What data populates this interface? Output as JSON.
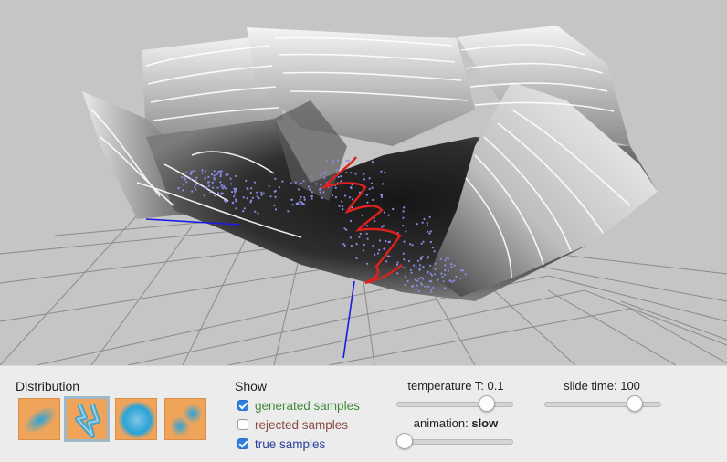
{
  "panel": {
    "distribution_title": "Distribution",
    "show_title": "Show",
    "show_options": [
      {
        "label": "generated samples",
        "checked": true,
        "color": "#3e8a38"
      },
      {
        "label": "rejected samples",
        "checked": false,
        "color": "#8a4a44"
      },
      {
        "label": "true samples",
        "checked": true,
        "color": "#2b3f9c"
      }
    ],
    "temperature_label": "temperature T: 0.1",
    "temperature_fraction": 0.8,
    "slide_time_label": "slide time: 100",
    "slide_time_fraction": 0.8,
    "animation_prefix": "animation: ",
    "animation_value": "slow",
    "animation_fraction": 0.0
  },
  "distributions": [
    {
      "icon": "ellipse-distribution-icon",
      "selected": false
    },
    {
      "icon": "zigzag-distribution-icon",
      "selected": true
    },
    {
      "icon": "ring-distribution-icon",
      "selected": false
    },
    {
      "icon": "two-blob-distribution-icon",
      "selected": false
    }
  ],
  "colors": {
    "background": "#c5c5c5",
    "controls": "#ececec",
    "thumb": "#f0a45a",
    "samples": "#8c8ce6",
    "path": "#e0201c",
    "axis": "#1a1ae6"
  }
}
